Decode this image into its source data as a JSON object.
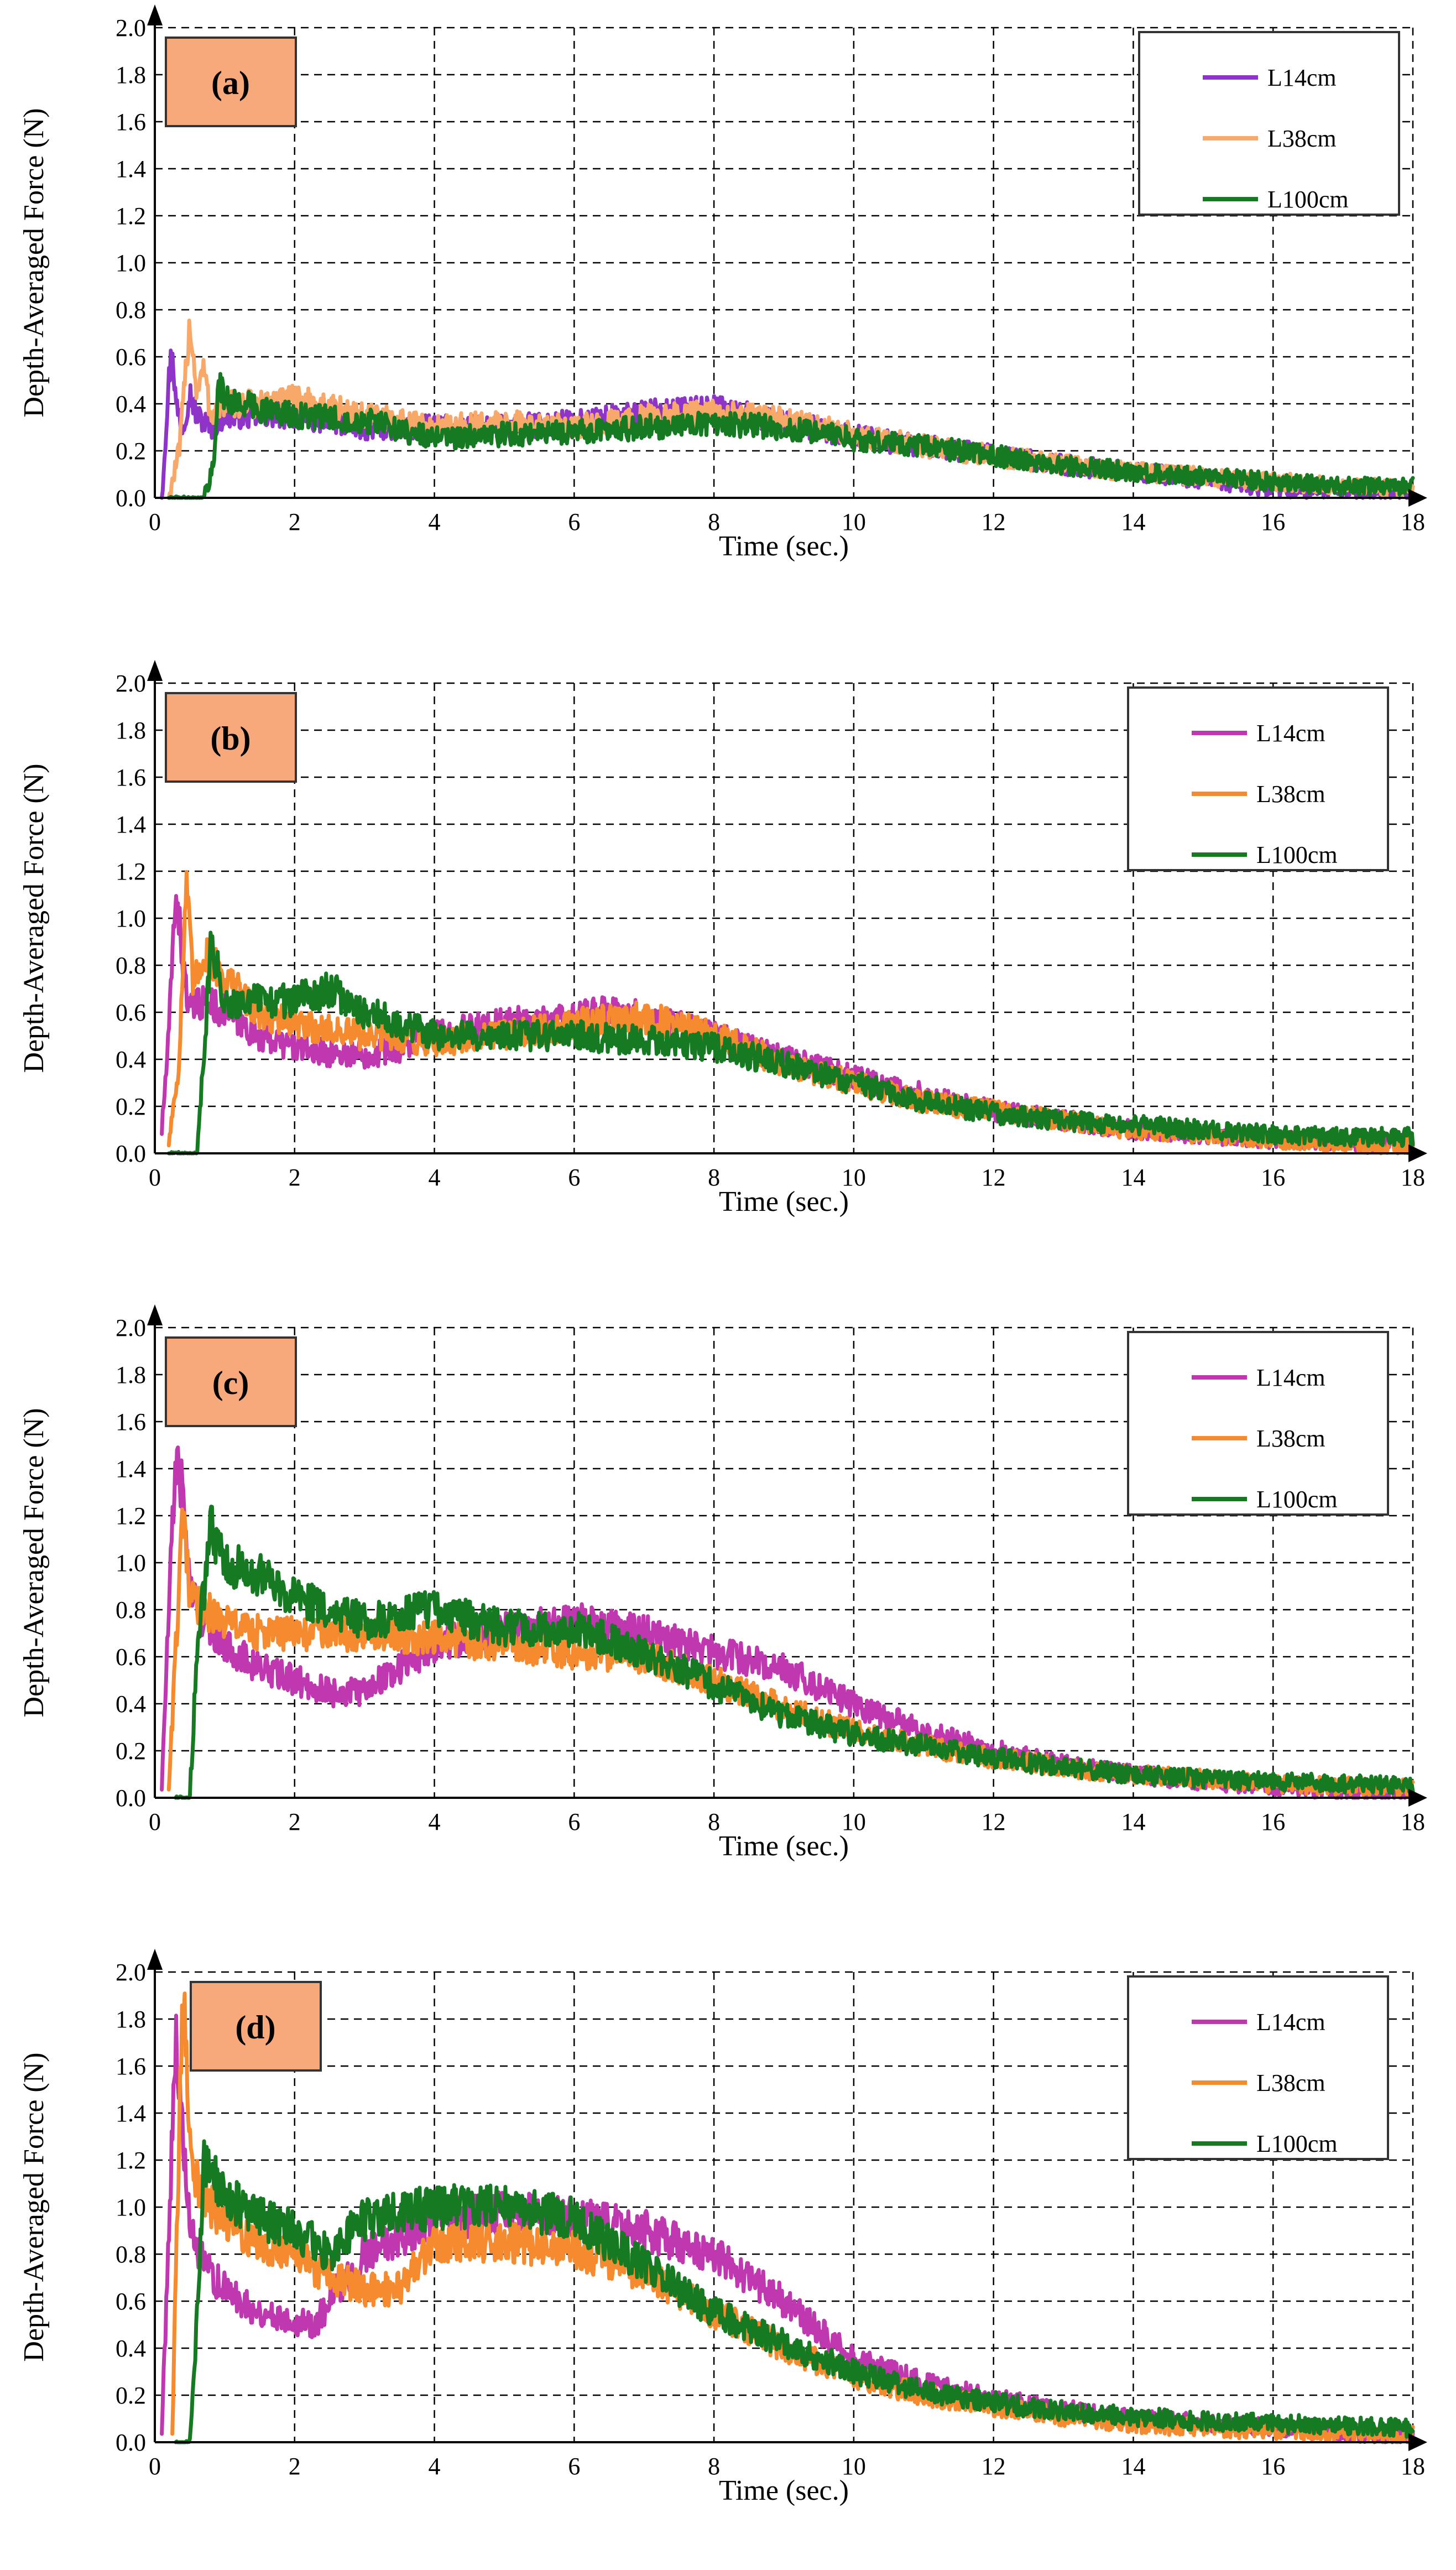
{
  "colors": {
    "L14_a": "#8e34c8",
    "L14": "#c038b0",
    "L38": "#f58a2e",
    "L38_a": "#f8a868",
    "L100": "#157a22",
    "tag_fill": "#f8a97c"
  },
  "chart_data": [
    {
      "type": "line",
      "panel": "(a)",
      "xlabel": "Time (sec.)",
      "ylabel": "Depth-Averaged Force (N)",
      "xlim": [
        0,
        18
      ],
      "ylim": [
        0,
        2.0
      ],
      "xticks": [
        0,
        2,
        4,
        6,
        8,
        10,
        12,
        14,
        16,
        18
      ],
      "yticks": [
        "0.0",
        "0.2",
        "0.4",
        "0.6",
        "0.8",
        "1.0",
        "1.2",
        "1.4",
        "1.6",
        "1.8",
        "2.0"
      ],
      "legend": [
        "L14cm",
        "L38cm",
        "L100cm"
      ],
      "series": [
        {
          "name": "L14cm",
          "color": "L14_a",
          "x": [
            0.1,
            0.2,
            0.25,
            0.3,
            0.4,
            0.5,
            0.6,
            0.8,
            1.0,
            1.5,
            2,
            3,
            4,
            5,
            6,
            7,
            8,
            9,
            10,
            11,
            12,
            13,
            14,
            15,
            16,
            17,
            18
          ],
          "y": [
            0.0,
            0.5,
            0.65,
            0.4,
            0.3,
            0.45,
            0.35,
            0.3,
            0.35,
            0.35,
            0.35,
            0.3,
            0.3,
            0.3,
            0.32,
            0.36,
            0.38,
            0.32,
            0.26,
            0.22,
            0.18,
            0.14,
            0.11,
            0.08,
            0.04,
            0.03,
            0.02
          ]
        },
        {
          "name": "L38cm",
          "color": "L38_a",
          "x": [
            0.2,
            0.35,
            0.5,
            0.6,
            0.7,
            0.8,
            1.0,
            1.5,
            2,
            3,
            4,
            5,
            6,
            7,
            8,
            9,
            10,
            11,
            12,
            13,
            14,
            15,
            16,
            17,
            18
          ],
          "y": [
            0.0,
            0.2,
            0.75,
            0.45,
            0.55,
            0.35,
            0.4,
            0.4,
            0.42,
            0.35,
            0.3,
            0.32,
            0.3,
            0.34,
            0.36,
            0.33,
            0.27,
            0.22,
            0.18,
            0.14,
            0.11,
            0.09,
            0.07,
            0.05,
            0.04
          ]
        },
        {
          "name": "L100cm",
          "color": "L100",
          "x": [
            0.2,
            0.7,
            0.85,
            0.9,
            1.0,
            1.5,
            2,
            3,
            4,
            5,
            6,
            7,
            8,
            9,
            10,
            11,
            12,
            13,
            14,
            15,
            16,
            17,
            18
          ],
          "y": [
            0.0,
            0.0,
            0.15,
            0.5,
            0.42,
            0.38,
            0.35,
            0.33,
            0.25,
            0.27,
            0.28,
            0.3,
            0.32,
            0.3,
            0.25,
            0.22,
            0.18,
            0.14,
            0.11,
            0.09,
            0.07,
            0.05,
            0.05
          ]
        }
      ]
    },
    {
      "type": "line",
      "panel": "(b)",
      "xlabel": "Time (sec.)",
      "ylabel": "Depth-Averaged Force (N)",
      "xlim": [
        0,
        18
      ],
      "ylim": [
        0,
        2.0
      ],
      "xticks": [
        0,
        2,
        4,
        6,
        8,
        10,
        12,
        14,
        16,
        18
      ],
      "yticks": [
        "0.0",
        "0.2",
        "0.4",
        "0.6",
        "0.8",
        "1.0",
        "1.2",
        "1.4",
        "1.6",
        "1.8",
        "2.0"
      ],
      "legend": [
        "L14cm",
        "L38cm",
        "L100cm"
      ],
      "series": [
        {
          "name": "L14cm",
          "color": "L14",
          "x": [
            0.1,
            0.2,
            0.3,
            0.4,
            0.5,
            0.7,
            1.0,
            1.5,
            2,
            2.5,
            3,
            3.5,
            4,
            5,
            6,
            6.5,
            7,
            8,
            9,
            10,
            11,
            12,
            13,
            14,
            15,
            16,
            17,
            18
          ],
          "y": [
            0.1,
            0.5,
            1.15,
            0.8,
            0.6,
            0.65,
            0.6,
            0.5,
            0.45,
            0.43,
            0.42,
            0.45,
            0.5,
            0.55,
            0.58,
            0.6,
            0.58,
            0.5,
            0.4,
            0.32,
            0.25,
            0.18,
            0.14,
            0.1,
            0.08,
            0.06,
            0.05,
            0.04
          ]
        },
        {
          "name": "L38cm",
          "color": "L38",
          "x": [
            0.2,
            0.35,
            0.45,
            0.55,
            0.7,
            1.0,
            1.5,
            2,
            3,
            4,
            5,
            6,
            7,
            8,
            9,
            10,
            11,
            12,
            13,
            14,
            15,
            16,
            17,
            18
          ],
          "y": [
            0.05,
            0.4,
            1.15,
            0.7,
            0.85,
            0.75,
            0.6,
            0.55,
            0.5,
            0.48,
            0.5,
            0.55,
            0.58,
            0.5,
            0.38,
            0.3,
            0.22,
            0.18,
            0.14,
            0.1,
            0.08,
            0.06,
            0.04,
            0.03
          ]
        },
        {
          "name": "L100cm",
          "color": "L100",
          "x": [
            0.2,
            0.6,
            0.7,
            0.8,
            1.0,
            1.5,
            2,
            2.5,
            3,
            4,
            5,
            6,
            7,
            8,
            9,
            10,
            11,
            12,
            13,
            14,
            15,
            16,
            17,
            18
          ],
          "y": [
            0.0,
            0.0,
            0.4,
            0.9,
            0.65,
            0.65,
            0.65,
            0.7,
            0.6,
            0.5,
            0.5,
            0.5,
            0.48,
            0.45,
            0.38,
            0.3,
            0.22,
            0.17,
            0.14,
            0.12,
            0.1,
            0.08,
            0.07,
            0.07
          ]
        }
      ]
    },
    {
      "type": "line",
      "panel": "(c)",
      "xlabel": "Time (sec.)",
      "ylabel": "Depth-Averaged Force (N)",
      "xlim": [
        0,
        18
      ],
      "ylim": [
        0,
        2.0
      ],
      "xticks": [
        0,
        2,
        4,
        6,
        8,
        10,
        12,
        14,
        16,
        18
      ],
      "yticks": [
        "0.0",
        "0.2",
        "0.4",
        "0.6",
        "0.8",
        "1.0",
        "1.2",
        "1.4",
        "1.6",
        "1.8",
        "2.0"
      ],
      "legend": [
        "L14cm",
        "L38cm",
        "L100cm"
      ],
      "series": [
        {
          "name": "L14cm",
          "color": "L14",
          "x": [
            0.1,
            0.2,
            0.3,
            0.4,
            0.5,
            0.7,
            1.0,
            1.5,
            2,
            2.5,
            2.9,
            3.5,
            4,
            5,
            6,
            7,
            8,
            9,
            10,
            11,
            12,
            13,
            14,
            15,
            16,
            17,
            18
          ],
          "y": [
            0.05,
            0.8,
            1.45,
            1.3,
            0.9,
            0.75,
            0.65,
            0.55,
            0.5,
            0.45,
            0.45,
            0.55,
            0.65,
            0.72,
            0.75,
            0.7,
            0.62,
            0.55,
            0.4,
            0.28,
            0.2,
            0.14,
            0.1,
            0.07,
            0.05,
            0.03,
            0.02
          ]
        },
        {
          "name": "L38cm",
          "color": "L38",
          "x": [
            0.2,
            0.4,
            0.5,
            0.7,
            1.0,
            1.5,
            2,
            3,
            4,
            5,
            6,
            7,
            8,
            9,
            10,
            11,
            12,
            13,
            14,
            15,
            16,
            17,
            18
          ],
          "y": [
            0.05,
            1.2,
            0.85,
            0.8,
            0.75,
            0.7,
            0.7,
            0.7,
            0.68,
            0.65,
            0.62,
            0.6,
            0.5,
            0.38,
            0.28,
            0.22,
            0.17,
            0.13,
            0.1,
            0.08,
            0.06,
            0.05,
            0.04
          ]
        },
        {
          "name": "L100cm",
          "color": "L100",
          "x": [
            0.3,
            0.5,
            0.6,
            0.8,
            1.0,
            1.5,
            2,
            3,
            4,
            5,
            6,
            7,
            8,
            9,
            10,
            11,
            12,
            13,
            14,
            15,
            16,
            17,
            18
          ],
          "y": [
            0.0,
            0.0,
            0.6,
            1.15,
            1.0,
            0.95,
            0.85,
            0.75,
            0.8,
            0.72,
            0.72,
            0.62,
            0.48,
            0.35,
            0.27,
            0.22,
            0.17,
            0.13,
            0.1,
            0.08,
            0.07,
            0.06,
            0.05
          ]
        }
      ]
    },
    {
      "type": "line",
      "panel": "(d)",
      "xlabel": "Time (sec.)",
      "ylabel": "Depth-Averaged Force (N)",
      "xlim": [
        0,
        18
      ],
      "ylim": [
        0,
        2.0
      ],
      "xticks": [
        0,
        2,
        4,
        6,
        8,
        10,
        12,
        14,
        16,
        18
      ],
      "yticks": [
        "0.0",
        "0.2",
        "0.4",
        "0.6",
        "0.8",
        "1.0",
        "1.2",
        "1.4",
        "1.6",
        "1.8",
        "2.0"
      ],
      "legend": [
        "L14cm",
        "L38cm",
        "L100cm"
      ],
      "series": [
        {
          "name": "L14cm",
          "color": "L14",
          "x": [
            0.1,
            0.2,
            0.3,
            0.4,
            0.5,
            0.7,
            1.0,
            1.5,
            2,
            2.3,
            2.5,
            3,
            4,
            5,
            6,
            7,
            8,
            9,
            10,
            11,
            12,
            13,
            14,
            15,
            16,
            17,
            18
          ],
          "y": [
            0.05,
            0.9,
            1.75,
            1.3,
            0.9,
            0.75,
            0.65,
            0.55,
            0.52,
            0.5,
            0.6,
            0.8,
            0.95,
            0.98,
            0.95,
            0.9,
            0.8,
            0.6,
            0.35,
            0.25,
            0.18,
            0.14,
            0.1,
            0.08,
            0.06,
            0.04,
            0.03
          ]
        },
        {
          "name": "L38cm",
          "color": "L38",
          "x": [
            0.25,
            0.4,
            0.5,
            0.6,
            0.8,
            1.0,
            1.5,
            2,
            2.5,
            3,
            3.5,
            4,
            5,
            6,
            7,
            8,
            9,
            10,
            11,
            12,
            13,
            14,
            15,
            16,
            17,
            18
          ],
          "y": [
            0.05,
            1.95,
            1.3,
            1.1,
            1.0,
            0.95,
            0.85,
            0.8,
            0.7,
            0.65,
            0.65,
            0.85,
            0.85,
            0.82,
            0.72,
            0.55,
            0.4,
            0.28,
            0.2,
            0.15,
            0.11,
            0.08,
            0.06,
            0.05,
            0.04,
            0.03
          ]
        },
        {
          "name": "L100cm",
          "color": "L100",
          "x": [
            0.3,
            0.5,
            0.6,
            0.7,
            1.0,
            1.5,
            2,
            2.5,
            3,
            4,
            5,
            6,
            7,
            8,
            9,
            10,
            11,
            12,
            13,
            14,
            15,
            16,
            17,
            18
          ],
          "y": [
            0.0,
            0.0,
            0.5,
            1.2,
            1.05,
            0.95,
            0.9,
            0.8,
            0.95,
            1.0,
            1.0,
            0.95,
            0.75,
            0.55,
            0.42,
            0.3,
            0.22,
            0.17,
            0.13,
            0.11,
            0.09,
            0.08,
            0.07,
            0.06
          ]
        }
      ]
    }
  ]
}
